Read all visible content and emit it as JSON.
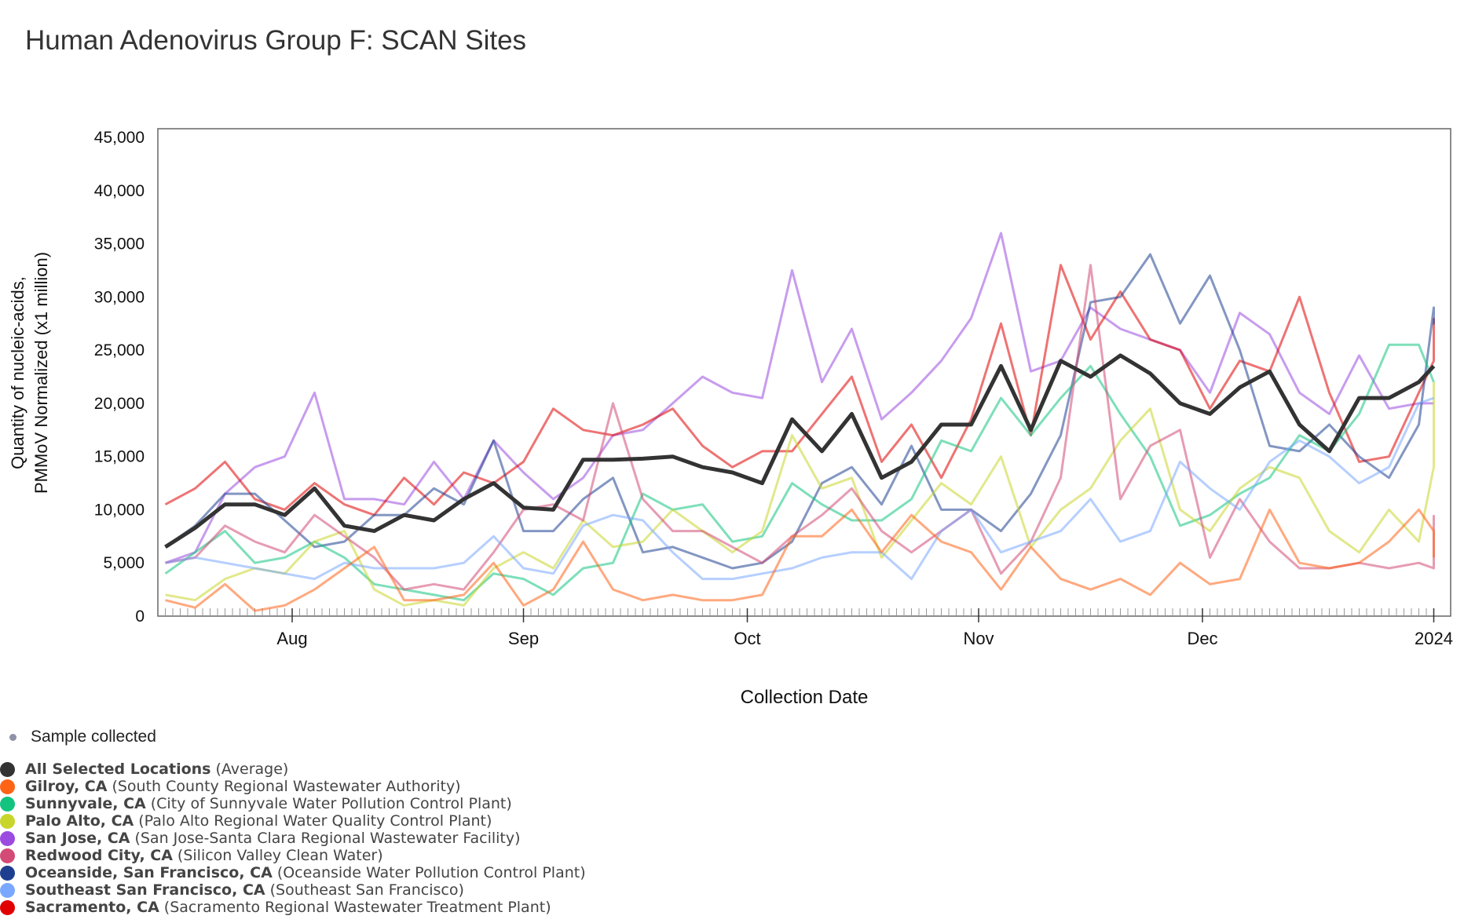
{
  "chart_data": {
    "type": "line",
    "title": "Human Adenovirus Group F: SCAN Sites",
    "xlabel": "Collection Date",
    "ylabel_lines": [
      "Quantity of nucleic-acids,",
      "PMMoV Normalized (x1 million)"
    ],
    "x_start": "2023-07-15",
    "x_step_days": 4,
    "xlim": [
      "2023-07-14",
      "2024-01-02"
    ],
    "x_ticks": [
      {
        "label": "Aug",
        "date": "2023-08-01"
      },
      {
        "label": "Sep",
        "date": "2023-09-01"
      },
      {
        "label": "Oct",
        "date": "2023-10-01"
      },
      {
        "label": "Nov",
        "date": "2023-11-01"
      },
      {
        "label": "Dec",
        "date": "2023-12-01"
      },
      {
        "label": "2024",
        "date": "2024-01-01"
      }
    ],
    "ylim": [
      0,
      45000
    ],
    "y_ticks": [
      "0",
      "5,000",
      "10,000",
      "15,000",
      "20,000",
      "25,000",
      "30,000",
      "35,000",
      "40,000",
      "45,000"
    ],
    "grid": false,
    "legend_position": "bottom-left",
    "series": [
      {
        "name": "San Jose, CA",
        "desc": "(San Jose-Santa Clara Regional Wastewater Facility)",
        "color": "#9b4be0",
        "values": [
          5000,
          6000,
          11500,
          14000,
          15000,
          21000,
          11000,
          11000,
          10500,
          14500,
          11000,
          16500,
          13500,
          11000,
          13000,
          17000,
          17500,
          20000,
          22500,
          21000,
          20500,
          32500,
          22000,
          27000,
          18500,
          21000,
          24000,
          28000,
          36000,
          23000,
          24000,
          29000,
          27000,
          26000,
          25000,
          21000,
          28500,
          26500,
          21000,
          19000,
          24500,
          19500,
          20000,
          20000
        ]
      },
      {
        "name": "Sacramento, CA",
        "desc": "(Sacramento Regional Wastewater Treatment Plant)",
        "color": "#e00000",
        "values": [
          10500,
          12000,
          14500,
          11000,
          10000,
          12500,
          10500,
          9500,
          13000,
          10500,
          13500,
          12500,
          14500,
          19500,
          17500,
          17000,
          18000,
          19500,
          16000,
          14000,
          15500,
          15500,
          19000,
          22500,
          14500,
          18000,
          13000,
          18500,
          27500,
          17000,
          33000,
          26000,
          30500,
          26000,
          25000,
          19500,
          24000,
          23000,
          30000,
          21000,
          14500,
          15000,
          21000,
          24000,
          27500,
          28000
        ]
      },
      {
        "name": "Oceanside, San Francisco, CA",
        "desc": "(Oceanside Water Pollution Control Plant)",
        "color": "#1e3f8f",
        "values": [
          6500,
          8500,
          11500,
          11500,
          9000,
          6500,
          7000,
          9500,
          9500,
          12000,
          10500,
          16500,
          8000,
          8000,
          11000,
          13000,
          6000,
          6500,
          5500,
          4500,
          5000,
          7000,
          12500,
          14000,
          10500,
          16000,
          10000,
          10000,
          8000,
          11500,
          17000,
          29500,
          30000,
          34000,
          27500,
          32000,
          25000,
          16000,
          15500,
          18000,
          15000,
          13000,
          18000,
          29000,
          27500,
          29000
        ]
      },
      {
        "name": "Sunnyvale, CA",
        "desc": "(City of Sunnyvale Water Pollution Control Plant)",
        "color": "#12c47f",
        "values": [
          4000,
          6000,
          8000,
          5000,
          5500,
          7000,
          5500,
          3000,
          2500,
          2000,
          1500,
          4000,
          3500,
          2000,
          4500,
          5000,
          11500,
          10000,
          10500,
          7000,
          7500,
          12500,
          10500,
          9000,
          9000,
          11000,
          16500,
          15500,
          20500,
          17000,
          20500,
          23500,
          19000,
          15000,
          8500,
          9500,
          11500,
          13000,
          17000,
          15500,
          19000,
          25500,
          25500,
          22000
        ]
      },
      {
        "name": "Palo Alto, CA",
        "desc": "(Palo Alto Regional Water Quality Control Plant)",
        "color": "#c8d62b",
        "values": [
          2000,
          1500,
          3500,
          4500,
          4000,
          7000,
          8000,
          2500,
          1000,
          1500,
          1000,
          4500,
          6000,
          4500,
          9000,
          6500,
          7000,
          10000,
          8000,
          6000,
          8000,
          17000,
          12000,
          13000,
          5500,
          9000,
          12500,
          10500,
          15000,
          6500,
          10000,
          12000,
          16500,
          19500,
          10000,
          8000,
          12000,
          14000,
          13000,
          8000,
          6000,
          10000,
          7000,
          14000,
          22000
        ]
      },
      {
        "name": "Redwood City, CA",
        "desc": "(Silicon Valley Clean Water)",
        "color": "#d24a75",
        "values": [
          5000,
          5500,
          8500,
          7000,
          6000,
          9500,
          7500,
          5500,
          2500,
          3000,
          2500,
          6000,
          10000,
          10500,
          9000,
          20000,
          11000,
          8000,
          8000,
          6500,
          5000,
          7500,
          9500,
          12000,
          8000,
          6000,
          8000,
          10000,
          4000,
          7000,
          13000,
          33000,
          11000,
          16000,
          17500,
          5500,
          11000,
          7000,
          4500,
          4500,
          5000,
          4500,
          5000,
          4500,
          9500
        ]
      },
      {
        "name": "Southeast San Francisco, CA",
        "desc": "(Southeast San Francisco)",
        "color": "#7aa8ff",
        "values": [
          5000,
          5500,
          5000,
          4500,
          4000,
          3500,
          5000,
          4500,
          4500,
          4500,
          5000,
          7500,
          4500,
          4000,
          8500,
          9500,
          9000,
          6000,
          3500,
          3500,
          4000,
          4500,
          5500,
          6000,
          6000,
          3500,
          8000,
          10000,
          6000,
          7000,
          8000,
          11000,
          7000,
          8000,
          14500,
          12000,
          10000,
          14500,
          16500,
          15000,
          12500,
          14000,
          20000,
          20500
        ]
      },
      {
        "name": "Gilroy, CA",
        "desc": "(South County Regional Wastewater Authority)",
        "color": "#ff6315",
        "values": [
          1500,
          800,
          3000,
          500,
          1000,
          2500,
          4500,
          6500,
          1500,
          1500,
          2000,
          5000,
          1000,
          2500,
          7000,
          2500,
          1500,
          2000,
          1500,
          1500,
          2000,
          7500,
          7500,
          10000,
          6000,
          9500,
          7000,
          6000,
          2500,
          6500,
          3500,
          2500,
          3500,
          2000,
          5000,
          3000,
          3500,
          10000,
          5000,
          4500,
          5000,
          7000,
          10000,
          8000,
          5500
        ]
      },
      {
        "name": "All Selected Locations",
        "desc": "(Average)",
        "color": "#333333",
        "values": [
          6500,
          8300,
          10500,
          10500,
          9500,
          12000,
          8500,
          8000,
          9500,
          9000,
          11000,
          12500,
          10200,
          10000,
          14700,
          14700,
          14800,
          15000,
          14000,
          13500,
          12500,
          18500,
          15500,
          19000,
          13000,
          14500,
          18000,
          18000,
          23500,
          17500,
          24000,
          22500,
          24500,
          22800,
          20000,
          19000,
          21500,
          23000,
          18000,
          15500,
          20500,
          20500,
          22000,
          23500
        ]
      }
    ]
  },
  "legend": {
    "sample_label": "Sample collected",
    "sample_color": "#8f92a6",
    "items": [
      {
        "name": "All Selected Locations",
        "desc": "(Average)",
        "color": "#333333"
      },
      {
        "name": "Gilroy, CA",
        "desc": "(South County Regional Wastewater Authority)",
        "color": "#ff6315"
      },
      {
        "name": "Sunnyvale, CA",
        "desc": "(City of Sunnyvale Water Pollution Control Plant)",
        "color": "#12c47f"
      },
      {
        "name": "Palo Alto, CA",
        "desc": "(Palo Alto Regional Water Quality Control Plant)",
        "color": "#c8d62b"
      },
      {
        "name": "San Jose, CA",
        "desc": "(San Jose-Santa Clara Regional Wastewater Facility)",
        "color": "#9b4be0"
      },
      {
        "name": "Redwood City, CA",
        "desc": "(Silicon Valley Clean Water)",
        "color": "#d24a75"
      },
      {
        "name": "Oceanside, San Francisco, CA",
        "desc": "(Oceanside Water Pollution Control Plant)",
        "color": "#1e3f8f"
      },
      {
        "name": "Southeast San Francisco, CA",
        "desc": "(Southeast San Francisco)",
        "color": "#7aa8ff"
      },
      {
        "name": "Sacramento, CA",
        "desc": "(Sacramento Regional Wastewater Treatment Plant)",
        "color": "#e00000"
      }
    ]
  }
}
